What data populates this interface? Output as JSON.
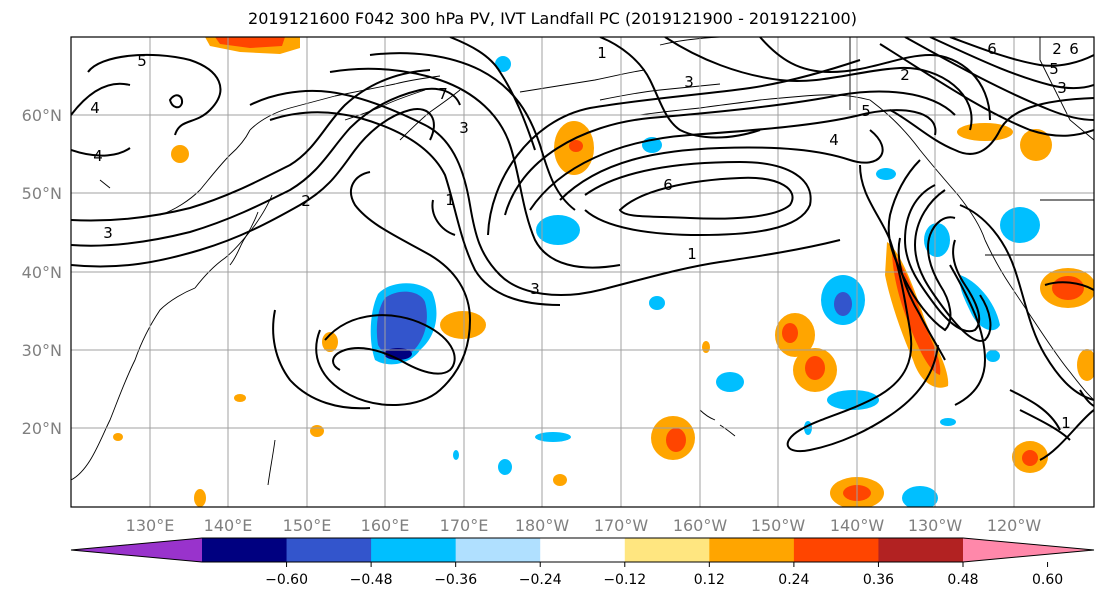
{
  "title": "2019121600 F042 300 hPa PV, IVT Landfall PC (2019121900 - 2019122100)",
  "map": {
    "lat_labels": [
      "60°N",
      "50°N",
      "40°N",
      "30°N",
      "20°N"
    ],
    "lon_labels": [
      "130°E",
      "140°E",
      "150°E",
      "160°E",
      "170°E",
      "180°W",
      "170°W",
      "160°W",
      "150°W",
      "140°W",
      "130°W",
      "120°W"
    ],
    "contour_labels": [
      "5",
      "4",
      "4",
      "3",
      "2",
      "7",
      "3",
      "1",
      "1",
      "3",
      "6",
      "4",
      "1",
      "3",
      "2",
      "5",
      "6",
      "5",
      "3",
      "2",
      "1",
      "6"
    ],
    "grid": true
  },
  "colorbar": {
    "ticks": [
      "−0.60",
      "−0.48",
      "−0.36",
      "−0.24",
      "−0.12",
      "0.12",
      "0.24",
      "0.36",
      "0.48",
      "0.60"
    ],
    "colors": [
      "#9933cc",
      "#000080",
      "#3355cc",
      "#00bfff",
      "#b0e0ff",
      "#ffffff",
      "#ffe680",
      "#ffa500",
      "#ff4500",
      "#b22222",
      "#ff88aa"
    ]
  }
}
